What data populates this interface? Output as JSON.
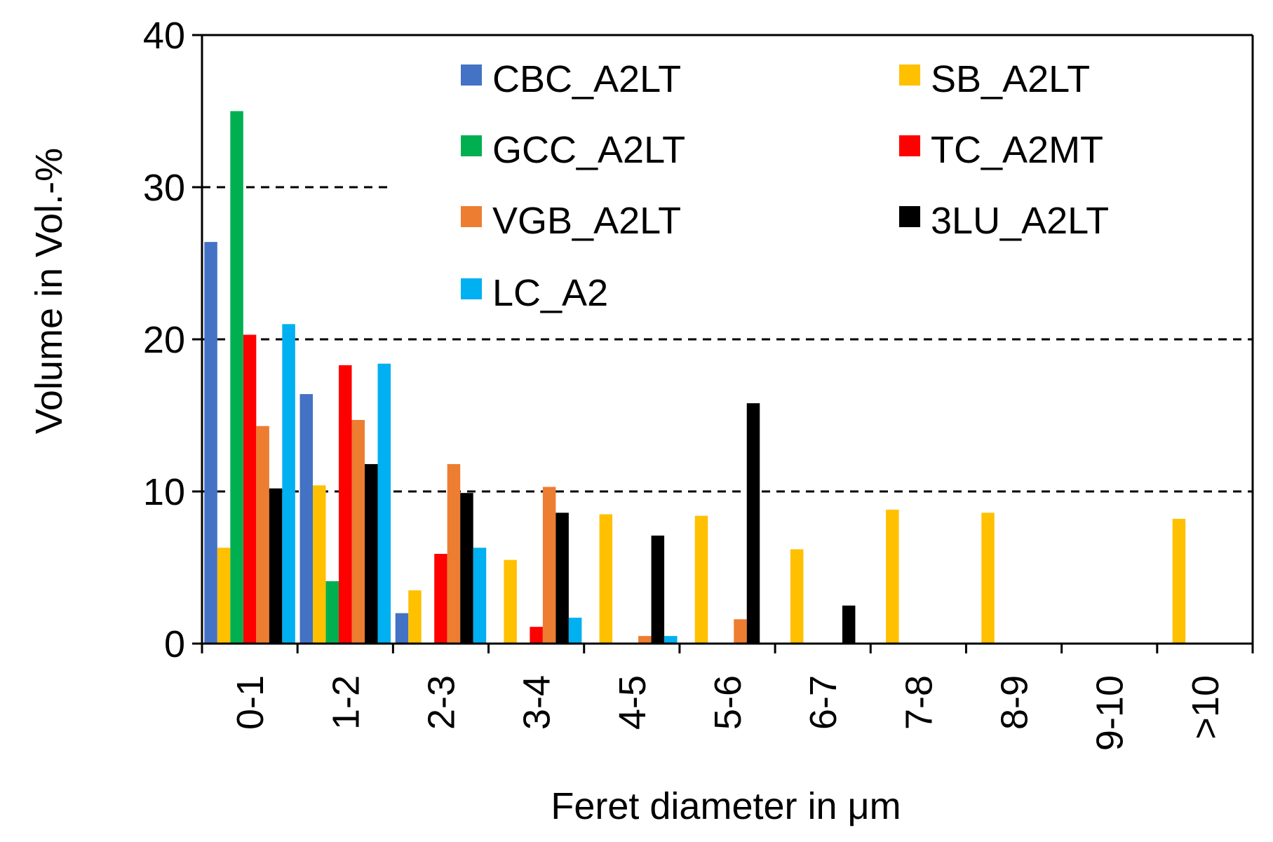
{
  "chart_data": {
    "type": "bar",
    "title": "",
    "xlabel": "Feret diameter in μm",
    "ylabel": "Volume in Vol.-%",
    "ylim": [
      0,
      40
    ],
    "yticks": [
      0,
      10,
      20,
      30,
      40
    ],
    "grid": "dashed reference lines at 10, 20 (full width) and 30 (partial)",
    "legend_position": "top-right inside plot",
    "categories": [
      "0-1",
      "1-2",
      "2-3",
      "3-4",
      "4-5",
      "5-6",
      "6-7",
      "7-8",
      "8-9",
      "9-10",
      ">10"
    ],
    "series": [
      {
        "name": "CBC_A2LT",
        "color": "#4472C4",
        "values": [
          26.4,
          16.4,
          2.0,
          0,
          0,
          0,
          0,
          0,
          0,
          0,
          0
        ]
      },
      {
        "name": "SB_A2LT",
        "color": "#FFC000",
        "values": [
          6.3,
          10.4,
          3.5,
          5.5,
          8.5,
          8.4,
          6.2,
          8.8,
          8.6,
          0,
          8.2
        ]
      },
      {
        "name": "GCC_A2LT",
        "color": "#00B050",
        "values": [
          35.0,
          4.1,
          0,
          0,
          0,
          0,
          0,
          0,
          0,
          0,
          0
        ]
      },
      {
        "name": "TC_A2MT",
        "color": "#FF0000",
        "values": [
          20.3,
          18.3,
          5.9,
          1.1,
          0,
          0,
          0,
          0,
          0,
          0,
          0
        ]
      },
      {
        "name": "VGB_A2LT",
        "color": "#ED7D31",
        "values": [
          14.3,
          14.7,
          11.8,
          10.3,
          0.5,
          1.6,
          0,
          0,
          0,
          0,
          0
        ]
      },
      {
        "name": "3LU_A2LT",
        "color": "#000000",
        "values": [
          10.2,
          11.8,
          9.9,
          8.6,
          7.1,
          15.8,
          2.5,
          0,
          0,
          0,
          0
        ]
      },
      {
        "name": "LC_A2",
        "color": "#00B0F0",
        "values": [
          21.0,
          18.4,
          6.3,
          1.7,
          0.5,
          0,
          0,
          0,
          0,
          0,
          0
        ]
      }
    ]
  }
}
